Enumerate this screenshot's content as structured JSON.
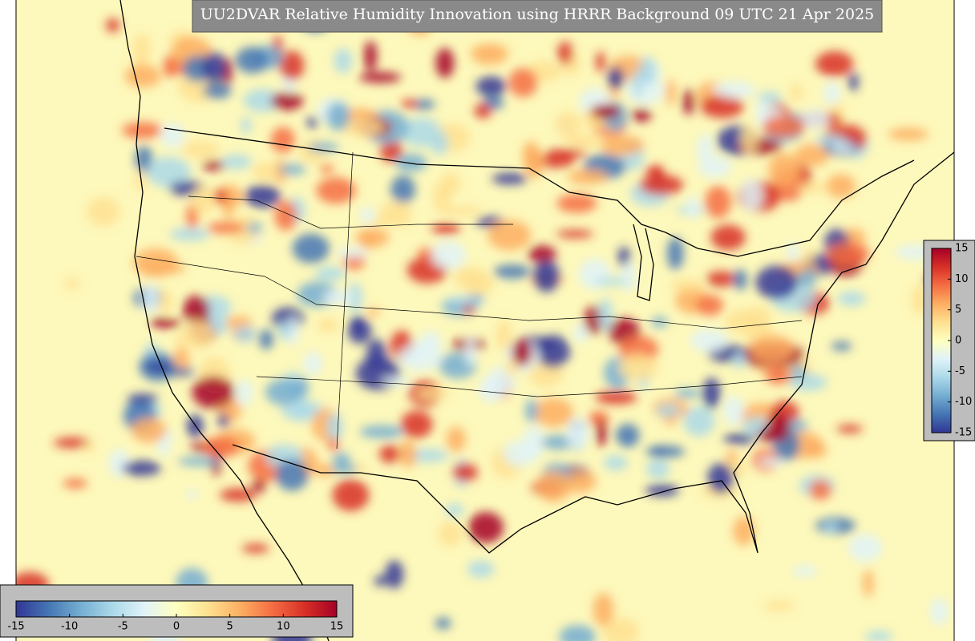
{
  "title": "UU2DVAR Relative Humidity Innovation using HRRR Background 09 UTC 21 Apr 2025",
  "colors": [
    "#313695",
    "#4575b4",
    "#74add1",
    "#abd9e9",
    "#e0f3f8",
    "#ffffbf",
    "#fee090",
    "#fdae61",
    "#f46d43",
    "#d73027",
    "#a50026"
  ],
  "colorbars": [
    {
      "lim": [
        -15,
        15
      ],
      "ticks": [
        15,
        10,
        5,
        0,
        -5,
        -10,
        -15
      ]
    },
    {
      "lim": [
        -15,
        15
      ],
      "ticks": [
        -15,
        -10,
        -5,
        0,
        5,
        10,
        15
      ]
    }
  ]
}
